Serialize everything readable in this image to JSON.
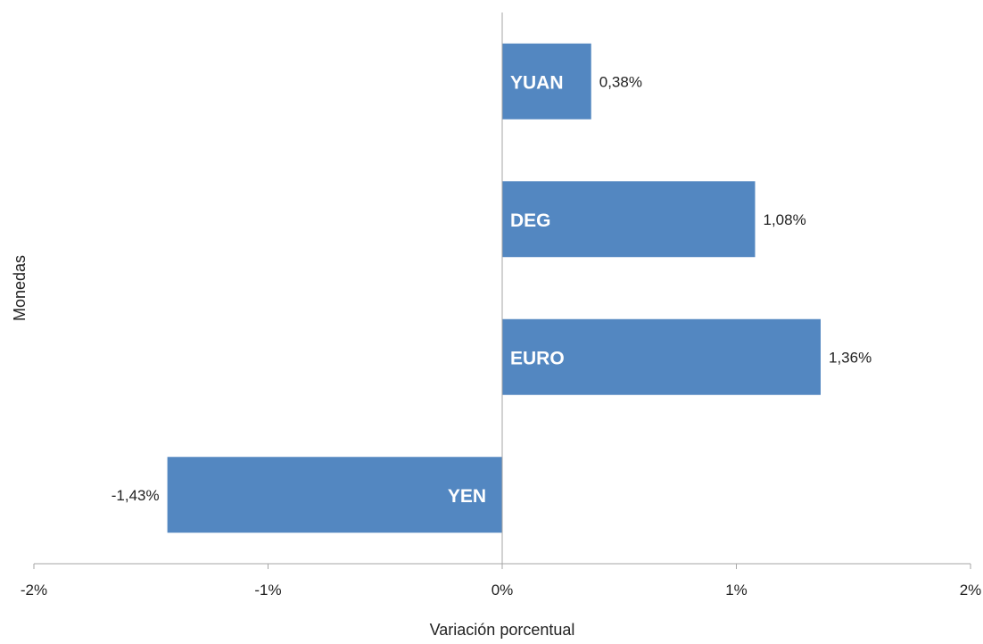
{
  "chart_data": {
    "type": "bar",
    "orientation": "horizontal",
    "categories": [
      "YUAN",
      "DEG",
      "EURO",
      "YEN"
    ],
    "values": [
      0.38,
      1.08,
      1.36,
      -1.43
    ],
    "data_labels": [
      "0,38%",
      "1,08%",
      "1,36%",
      "-1,43%"
    ],
    "xlabel": "Variación porcentual",
    "ylabel": "Monedas",
    "xlim": [
      -2,
      2
    ],
    "x_ticks": [
      -2,
      -1,
      0,
      1,
      2
    ],
    "x_tick_labels": [
      "-2%",
      "-1%",
      "0%",
      "1%",
      "2%"
    ],
    "grid": false,
    "bar_color": "#5387c1",
    "axis_color": "#a6a6a6"
  }
}
